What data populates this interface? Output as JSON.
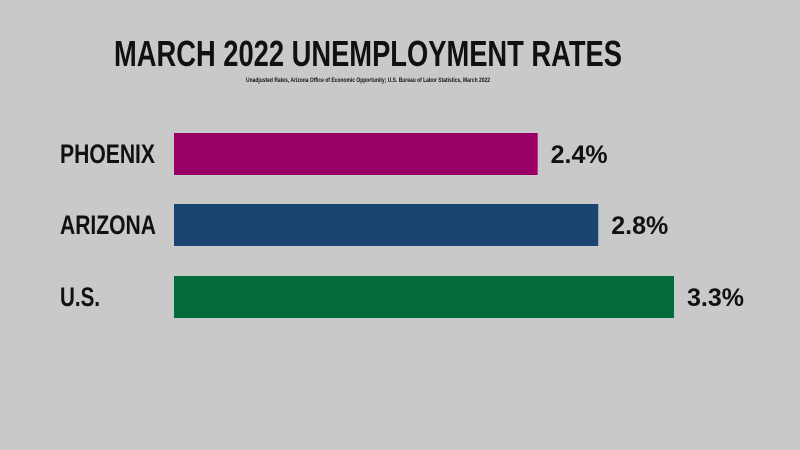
{
  "chart_data": {
    "type": "bar",
    "orientation": "horizontal",
    "title": "MARCH 2022 UNEMPLOYMENT RATES",
    "subtitle": "Unadjusted Rates, Arizona Office of Economic Opportunity; U.S. Bureau of Labor Statistics, March 2022",
    "categories": [
      "PHOENIX",
      "ARIZONA",
      "U.S."
    ],
    "values": [
      2.4,
      2.8,
      3.3
    ],
    "value_labels": [
      "2.4%",
      "2.8%",
      "3.3%"
    ],
    "colors": [
      "#990066",
      "#1b4571",
      "#046b3a"
    ],
    "xlim": [
      0,
      3.3
    ],
    "grid": false,
    "legend": "none"
  },
  "colors": {
    "background": "#c9c9c9",
    "text": "#111111"
  }
}
